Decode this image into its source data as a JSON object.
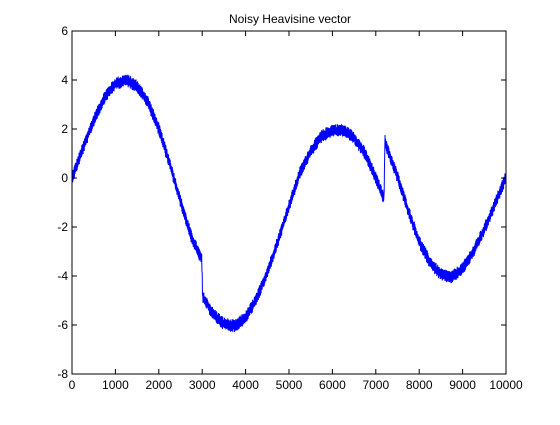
{
  "chart_data": {
    "type": "line",
    "title": "Noisy Heavisine vector",
    "xlabel": "",
    "ylabel": "",
    "xlim": [
      0,
      10000
    ],
    "ylim": [
      -8,
      6
    ],
    "x_ticks": [
      0,
      1000,
      2000,
      3000,
      4000,
      5000,
      6000,
      7000,
      8000,
      9000,
      10000
    ],
    "y_ticks": [
      -8,
      -6,
      -4,
      -2,
      0,
      2,
      4,
      6
    ],
    "x_tick_labels": [
      "0",
      "1000",
      "2000",
      "3000",
      "4000",
      "5000",
      "6000",
      "7000",
      "8000",
      "9000",
      "10000"
    ],
    "y_tick_labels": [
      "-8",
      "-6",
      "-4",
      "-2",
      "0",
      "2",
      "4",
      "6"
    ],
    "grid": false,
    "legend": "none",
    "series_color": "#0000ff",
    "noise_amplitude": 0.25,
    "series": [
      {
        "x": [
          0,
          250,
          500,
          750,
          1000,
          1250,
          1500,
          1750,
          2000,
          2250,
          2500,
          2750,
          2990,
          3010,
          3250,
          3500,
          3750,
          4000,
          4250,
          4500,
          4750,
          5000,
          5250,
          5500,
          5750,
          6000,
          6250,
          6500,
          6750,
          7000,
          7190,
          7210,
          7250,
          7500,
          7750,
          8000,
          8250,
          8500,
          8750,
          9000,
          9250,
          9500,
          9750,
          10000
        ],
        "y": [
          0.0,
          1.2,
          2.35,
          3.3,
          3.85,
          4.0,
          3.75,
          3.1,
          2.0,
          0.6,
          -0.95,
          -2.4,
          -3.35,
          -4.85,
          -5.55,
          -5.95,
          -6.05,
          -5.7,
          -4.95,
          -3.85,
          -2.55,
          -1.15,
          0.2,
          1.1,
          1.7,
          1.95,
          1.95,
          1.65,
          1.0,
          0.0,
          -0.85,
          1.6,
          1.25,
          0.05,
          -1.35,
          -2.6,
          -3.45,
          -3.95,
          -4.05,
          -3.7,
          -3.0,
          -2.1,
          -1.05,
          0.05
        ]
      }
    ]
  }
}
